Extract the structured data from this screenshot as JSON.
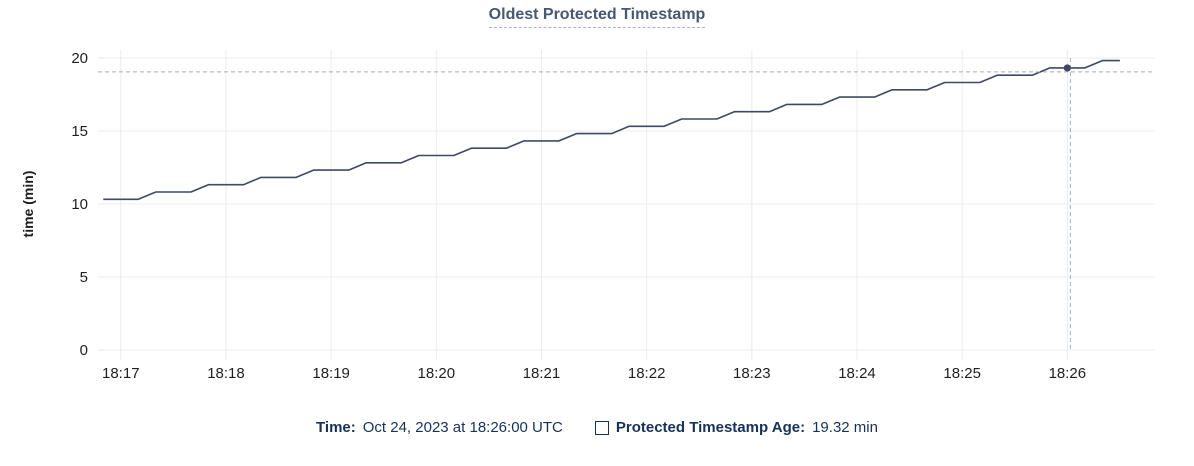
{
  "title": {
    "text": "Oldest Protected Timestamp"
  },
  "colors": {
    "title_color": "#475872",
    "underline_color": "#a9b4c4",
    "axis_text_color": "#1f1f1f",
    "grid_color": "#ececec",
    "line_color": "#3e4a63",
    "crosshair_color": "#9fb0bf",
    "legend_text_color": "#16325a",
    "bg_color": "#ffffff"
  },
  "chart_data": {
    "type": "line",
    "title": "Oldest Protected Timestamp",
    "xlabel": "",
    "ylabel": "time (min)",
    "ylim": [
      0,
      20
    ],
    "y_ticks": [
      0,
      5,
      10,
      15,
      20
    ],
    "x_ticks": [
      "18:17",
      "18:18",
      "18:19",
      "18:20",
      "18:21",
      "18:22",
      "18:23",
      "18:24",
      "18:25",
      "18:26"
    ],
    "x_tick_first_offset_s": 10,
    "x_tick_interval_s": 60,
    "x_domain_s": [
      -3,
      600
    ],
    "grid": true,
    "legend_position": "bottom",
    "series": [
      {
        "name": "Protected Timestamp Age",
        "unit": "min",
        "start_time": "18:16:50",
        "start_offset_s": 0,
        "interval_seconds": 10,
        "values": [
          10.32,
          10.32,
          10.32,
          10.82,
          10.82,
          10.82,
          11.32,
          11.32,
          11.32,
          11.82,
          11.82,
          11.82,
          12.32,
          12.32,
          12.32,
          12.82,
          12.82,
          12.82,
          13.32,
          13.32,
          13.32,
          13.82,
          13.82,
          13.82,
          14.32,
          14.32,
          14.32,
          14.82,
          14.82,
          14.82,
          15.32,
          15.32,
          15.32,
          15.82,
          15.82,
          15.82,
          16.32,
          16.32,
          16.32,
          16.82,
          16.82,
          16.82,
          17.32,
          17.32,
          17.32,
          17.82,
          17.82,
          17.82,
          18.32,
          18.32,
          18.32,
          18.82,
          18.82,
          18.82,
          19.32,
          19.32,
          19.32,
          19.82,
          19.82
        ]
      }
    ],
    "highlight": {
      "offset_s": 550,
      "time": "18:26:00",
      "value": 19.32
    }
  },
  "legend": {
    "time_label": "Time:",
    "time_value": "Oct 24, 2023 at 18:26:00 UTC",
    "series_label": "Protected Timestamp Age:",
    "series_value": "19.32 min"
  }
}
